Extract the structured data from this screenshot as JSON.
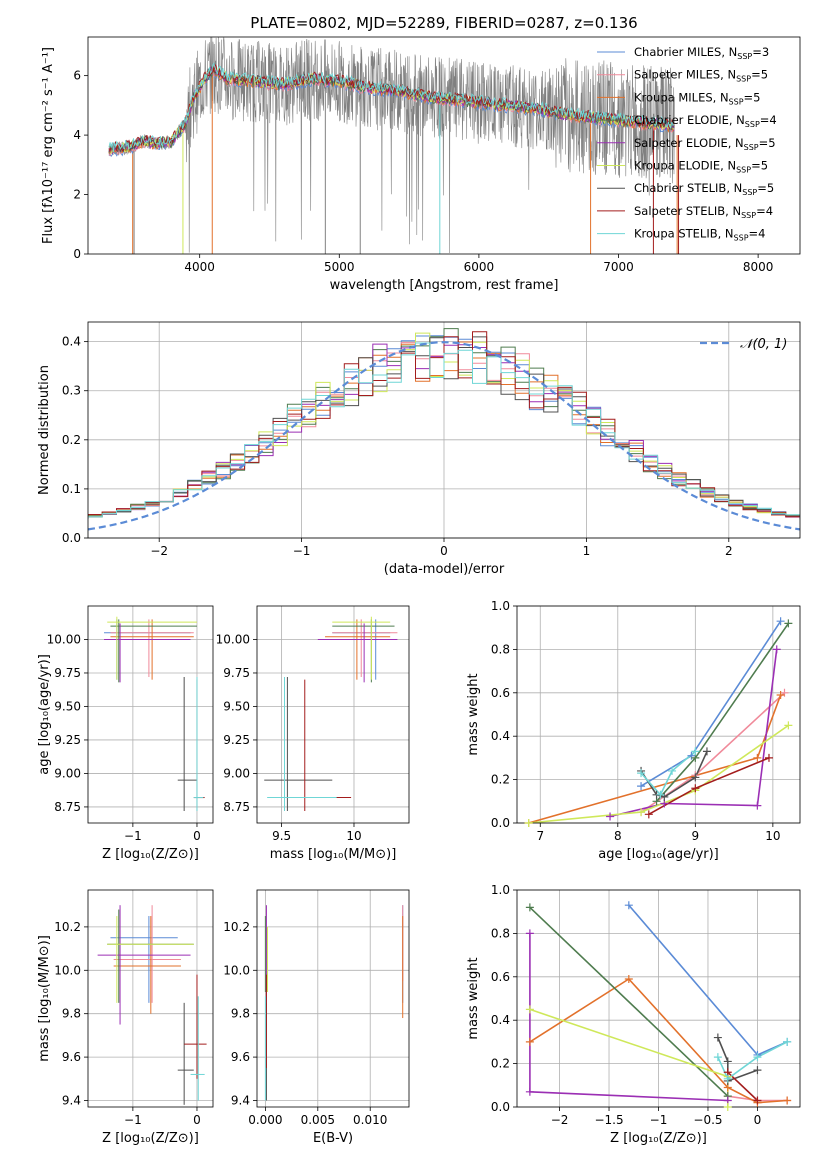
{
  "colors": {
    "chabrier_miles": "#5b8bd6",
    "salpeter_miles": "#f08a9a",
    "kroupa_miles": "#e2712b",
    "chabrier_elodie": "#4f7c4f",
    "salpeter_elodie": "#9b2fb4",
    "kroupa_elodie": "#cfe85a",
    "chabrier_stelib": "#505050",
    "salpeter_stelib": "#a31d1d",
    "kroupa_stelib": "#6fd6d6",
    "data": "#808080"
  },
  "chart_data": [
    {
      "id": "spectrum",
      "type": "line",
      "title": "PLATE=0802, MJD=52289, FIBERID=0287, z=0.136",
      "xlabel": "wavelength [Angstrom, rest frame]",
      "ylabel": "Flux [fλ10⁻¹⁷ erg cm⁻² s⁻¹ A⁻¹]",
      "xlim": [
        3200,
        8300
      ],
      "ylim": [
        0,
        7.3
      ],
      "xticks": [
        4000,
        5000,
        6000,
        7000,
        8000
      ],
      "yticks": [
        0,
        2,
        4,
        6
      ],
      "grid": false,
      "legend_placement": "right",
      "legend": [
        {
          "label": "Chabrier MILES, N",
          "sub": "SSP",
          "tail": "=3",
          "color": "chabrier_miles"
        },
        {
          "label": "Salpeter MILES, N",
          "sub": "SSP",
          "tail": "=5",
          "color": "salpeter_miles"
        },
        {
          "label": "Kroupa MILES, N",
          "sub": "SSP",
          "tail": "=5",
          "color": "kroupa_miles"
        },
        {
          "label": "Chabrier ELODIE, N",
          "sub": "SSP",
          "tail": "=4",
          "color": "chabrier_elodie"
        },
        {
          "label": "Salpeter ELODIE, N",
          "sub": "SSP",
          "tail": "=5",
          "color": "salpeter_elodie"
        },
        {
          "label": "Kroupa ELODIE, N",
          "sub": "SSP",
          "tail": "=5",
          "color": "kroupa_elodie"
        },
        {
          "label": "Chabrier STELIB, N",
          "sub": "SSP",
          "tail": "=5",
          "color": "chabrier_stelib"
        },
        {
          "label": "Salpeter STELIB, N",
          "sub": "SSP",
          "tail": "=4",
          "color": "salpeter_stelib"
        },
        {
          "label": "Kroupa STELIB, N",
          "sub": "SSP",
          "tail": "=4",
          "color": "kroupa_stelib"
        }
      ],
      "model_envelope": {
        "x": [
          3350,
          3500,
          3600,
          3700,
          3800,
          3900,
          3950,
          4000,
          4050,
          4100,
          4200,
          4400,
          4600,
          4800,
          5000,
          5200,
          5400,
          5600,
          5800,
          6000,
          6200,
          6400,
          6600,
          6800,
          7000,
          7200,
          7400
        ],
        "y": [
          3.5,
          3.6,
          3.8,
          3.7,
          3.8,
          4.4,
          5.2,
          5.6,
          6.0,
          6.2,
          5.9,
          5.8,
          5.7,
          5.9,
          5.8,
          5.6,
          5.5,
          5.3,
          5.2,
          5.1,
          5.0,
          4.9,
          4.7,
          4.6,
          4.5,
          4.4,
          4.3
        ]
      },
      "data_noise_amplitude": 1.4,
      "dropouts": [
        {
          "x": 3520,
          "color": "kroupa_miles"
        },
        {
          "x": 3530,
          "color": "data"
        },
        {
          "x": 3880,
          "color": "kroupa_elodie"
        },
        {
          "x": 4090,
          "color": "kroupa_miles"
        },
        {
          "x": 4900,
          "color": "data"
        },
        {
          "x": 5150,
          "color": "data"
        },
        {
          "x": 5720,
          "color": "kroupa_stelib"
        },
        {
          "x": 6800,
          "color": "kroupa_miles"
        },
        {
          "x": 7250,
          "color": "salpeter_stelib"
        },
        {
          "x": 7420,
          "color": "kroupa_miles"
        },
        {
          "x": 7430,
          "color": "salpeter_stelib"
        }
      ]
    },
    {
      "id": "residuals",
      "type": "line",
      "xlabel": "(data-model)/error",
      "ylabel": "Normed distribution",
      "xlim": [
        -2.5,
        2.5
      ],
      "ylim": [
        0,
        0.44
      ],
      "xticks": [
        -2,
        -1,
        0,
        1,
        2
      ],
      "yticks": [
        0.0,
        0.1,
        0.2,
        0.3,
        0.4
      ],
      "grid": true,
      "legend_placement": "top-right",
      "reference_label": "𝒩(0, 1)",
      "reference_color": "chabrier_miles",
      "bin_width": 0.1
    },
    {
      "id": "age_vs_Z",
      "type": "errorbar",
      "xlabel": "Z [log₁₀(Z/Z⊙)]",
      "ylabel": "age  [log₁₀(age/yr)]",
      "xlim": [
        -1.7,
        0.25
      ],
      "ylim": [
        8.63,
        10.25
      ],
      "xticks": [
        -1,
        0
      ],
      "yticks": [
        8.75,
        9.0,
        9.25,
        9.5,
        9.75,
        10.0
      ],
      "grid": true
    },
    {
      "id": "age_vs_mass",
      "type": "errorbar",
      "xlabel": "mass [log₁₀(M/M⊙)]",
      "ylabel": "",
      "xlim": [
        9.33,
        10.38
      ],
      "ylim": [
        8.63,
        10.25
      ],
      "xticks": [
        9.5,
        10.0
      ],
      "yticks": [
        8.75,
        9.0,
        9.25,
        9.5,
        9.75,
        10.0
      ],
      "grid": true
    },
    {
      "id": "weight_vs_age",
      "type": "line",
      "xlabel": "age  [log₁₀(age/yr)]",
      "ylabel": "mass weight",
      "xlim": [
        6.7,
        10.35
      ],
      "ylim": [
        0,
        1.0
      ],
      "xticks": [
        7,
        8,
        9,
        10
      ],
      "yticks": [
        0.0,
        0.2,
        0.4,
        0.6,
        0.8,
        1.0
      ],
      "grid": true,
      "series": [
        {
          "color": "chabrier_miles",
          "x": [
            8.3,
            8.95,
            10.1
          ],
          "y": [
            0.17,
            0.31,
            0.93
          ]
        },
        {
          "color": "salpeter_miles",
          "x": [
            8.3,
            9.0,
            10.15
          ],
          "y": [
            0.05,
            0.22,
            0.6
          ]
        },
        {
          "color": "kroupa_miles",
          "x": [
            6.85,
            9.8,
            10.1
          ],
          "y": [
            0.0,
            0.3,
            0.59
          ]
        },
        {
          "color": "chabrier_elodie",
          "x": [
            8.5,
            9.0,
            10.2
          ],
          "y": [
            0.1,
            0.3,
            0.92
          ]
        },
        {
          "color": "salpeter_elodie",
          "x": [
            7.9,
            8.6,
            9.8,
            10.05
          ],
          "y": [
            0.03,
            0.09,
            0.08,
            0.8
          ]
        },
        {
          "color": "kroupa_elodie",
          "x": [
            6.85,
            8.3,
            9.0,
            10.2
          ],
          "y": [
            0.0,
            0.05,
            0.15,
            0.45
          ]
        },
        {
          "color": "chabrier_stelib",
          "x": [
            8.3,
            8.5,
            8.6,
            9.0,
            9.15
          ],
          "y": [
            0.24,
            0.13,
            0.12,
            0.21,
            0.33
          ]
        },
        {
          "color": "salpeter_stelib",
          "x": [
            8.4,
            9.0,
            9.95
          ],
          "y": [
            0.04,
            0.16,
            0.3
          ]
        },
        {
          "color": "kroupa_stelib",
          "x": [
            8.3,
            8.55,
            8.7,
            9.0
          ],
          "y": [
            0.23,
            0.13,
            0.24,
            0.33
          ]
        }
      ]
    },
    {
      "id": "mass_vs_Z",
      "type": "errorbar",
      "xlabel": "Z [log₁₀(Z/Z⊙)]",
      "ylabel": "mass [log₁₀(M/M⊙)]",
      "xlim": [
        -1.7,
        0.25
      ],
      "ylim": [
        9.37,
        10.37
      ],
      "xticks": [
        -1,
        0
      ],
      "yticks": [
        9.4,
        9.6,
        9.8,
        10.0,
        10.2
      ],
      "grid": true
    },
    {
      "id": "mass_vs_ebv",
      "type": "errorbar",
      "xlabel": "E(B-V)",
      "ylabel": "",
      "xlim": [
        -0.0008,
        0.0137
      ],
      "ylim": [
        9.37,
        10.37
      ],
      "xticks": [
        0.0,
        0.005,
        0.01
      ],
      "xticklabels": [
        "0.000",
        "0.005",
        "0.010"
      ],
      "yticks": [
        9.4,
        9.6,
        9.8,
        10.0,
        10.2
      ],
      "grid": true
    },
    {
      "id": "weight_vs_Z",
      "type": "line",
      "xlabel": "Z [log₁₀(Z/Z⊙)]",
      "ylabel": "mass weight",
      "xlim": [
        -2.43,
        0.43
      ],
      "ylim": [
        0,
        1.0
      ],
      "xticks": [
        -2.0,
        -1.5,
        -1.0,
        -0.5,
        0.0
      ],
      "yticks": [
        0.0,
        0.2,
        0.4,
        0.6,
        0.8,
        1.0
      ],
      "grid": true,
      "series": [
        {
          "color": "chabrier_miles",
          "x": [
            -1.3,
            0.0,
            0.3
          ],
          "y": [
            0.93,
            0.24,
            0.3
          ]
        },
        {
          "color": "salpeter_miles",
          "x": [
            -0.3,
            0.0,
            0.3
          ],
          "y": [
            0.05,
            0.03,
            0.03
          ]
        },
        {
          "color": "kroupa_miles",
          "x": [
            -2.3,
            -1.3,
            -0.3,
            0.0,
            0.3
          ],
          "y": [
            0.3,
            0.59,
            0.09,
            0.02,
            0.03
          ]
        },
        {
          "color": "chabrier_elodie",
          "x": [
            -2.3,
            -0.3
          ],
          "y": [
            0.92,
            0.05
          ]
        },
        {
          "color": "salpeter_elodie",
          "x": [
            -2.3,
            -2.3,
            -0.3
          ],
          "y": [
            0.8,
            0.07,
            0.03
          ]
        },
        {
          "color": "kroupa_elodie",
          "x": [
            -2.3,
            -0.3,
            -0.3
          ],
          "y": [
            0.45,
            0.14,
            0.0
          ]
        },
        {
          "color": "chabrier_stelib",
          "x": [
            -0.4,
            -0.3,
            -0.3,
            0.0
          ],
          "y": [
            0.32,
            0.21,
            0.12,
            0.17
          ]
        },
        {
          "color": "salpeter_stelib",
          "x": [
            -0.3,
            0.0
          ],
          "y": [
            0.16,
            0.03
          ]
        },
        {
          "color": "kroupa_stelib",
          "x": [
            -0.4,
            -0.3,
            0.0,
            0.3
          ],
          "y": [
            0.23,
            0.13,
            0.23,
            0.3
          ]
        }
      ]
    }
  ],
  "fits": [
    {
      "color": "chabrier_miles",
      "age": 10.05,
      "age_lo": 9.7,
      "age_hi": 10.15,
      "Z": -1.25,
      "Z_lo": -1.45,
      "Z_hi": -0.1,
      "mass": 10.15,
      "mass_lo": 9.85,
      "mass_hi": 10.25,
      "mZ": -0.75,
      "mZ_lo": -1.35,
      "mZ_hi": -0.3,
      "ebv": 0.0131,
      "ebv_m_lo": 9.85,
      "ebv_m_hi": 10.3
    },
    {
      "color": "salpeter_miles",
      "age": 10.05,
      "age_lo": 9.72,
      "age_hi": 10.15,
      "Z": -0.75,
      "Z_lo": -1.35,
      "Z_hi": -0.05,
      "mass": 10.05,
      "mass_lo": 9.85,
      "mass_hi": 10.3,
      "mZ": -0.7,
      "mZ_lo": -1.3,
      "mZ_hi": -0.25,
      "ebv": 0.0131,
      "ebv_m_lo": 9.95,
      "ebv_m_hi": 10.3
    },
    {
      "color": "kroupa_miles",
      "age": 10.02,
      "age_lo": 9.7,
      "age_hi": 10.15,
      "Z": -0.7,
      "Z_lo": -1.35,
      "Z_hi": -0.05,
      "mass": 10.02,
      "mass_lo": 9.8,
      "mass_hi": 10.25,
      "mZ": -0.72,
      "mZ_lo": -1.3,
      "mZ_hi": -0.25,
      "ebv": 0.0131,
      "ebv_m_lo": 9.78,
      "ebv_m_hi": 10.25
    },
    {
      "color": "chabrier_elodie",
      "age": 10.1,
      "age_lo": 9.68,
      "age_hi": 10.15,
      "Z": -1.22,
      "Z_lo": -1.35,
      "Z_hi": 0.0,
      "mass": 10.12,
      "mass_lo": 9.85,
      "mass_hi": 10.28,
      "mZ": -1.22,
      "mZ_lo": -1.4,
      "mZ_hi": -0.05,
      "ebv": 0.0,
      "ebv_m_lo": 9.9,
      "ebv_m_hi": 10.25
    },
    {
      "color": "salpeter_elodie",
      "age": 10.0,
      "age_lo": 9.68,
      "age_hi": 10.12,
      "Z": -1.2,
      "Z_lo": -1.45,
      "Z_hi": -0.1,
      "mass": 10.07,
      "mass_lo": 9.75,
      "mass_hi": 10.3,
      "mZ": -1.2,
      "mZ_lo": -1.55,
      "mZ_hi": -0.1,
      "ebv": 0.0001,
      "ebv_m_lo": 9.85,
      "ebv_m_hi": 10.3
    },
    {
      "color": "kroupa_elodie",
      "age": 10.13,
      "age_lo": 9.7,
      "age_hi": 10.17,
      "Z": -1.25,
      "Z_lo": -1.4,
      "Z_hi": 0.0,
      "mass": 10.12,
      "mass_lo": 9.85,
      "mass_hi": 10.25,
      "mZ": -1.25,
      "mZ_lo": -1.4,
      "mZ_hi": -0.05,
      "ebv": 0.0002,
      "ebv_m_lo": 9.9,
      "ebv_m_hi": 10.2
    },
    {
      "color": "chabrier_stelib",
      "age": 8.95,
      "age_lo": 8.72,
      "age_hi": 9.72,
      "Z": -0.2,
      "Z_lo": -0.3,
      "Z_hi": 0.0,
      "mass": 9.54,
      "mass_lo": 9.38,
      "mass_hi": 9.85,
      "mZ": -0.2,
      "mZ_lo": -0.3,
      "mZ_hi": -0.05,
      "ebv": 0.0001,
      "ebv_m_lo": 9.4,
      "ebv_m_hi": 9.85
    },
    {
      "color": "salpeter_stelib",
      "age": 8.82,
      "age_lo": 8.72,
      "age_hi": 9.7,
      "Z": 0.0,
      "Z_lo": -0.05,
      "Z_hi": 0.12,
      "mass": 9.66,
      "mass_lo": 9.5,
      "mass_hi": 9.98,
      "mZ": 0.0,
      "mZ_lo": -0.2,
      "mZ_hi": 0.15,
      "ebv": 0.0001,
      "ebv_m_lo": 9.55,
      "ebv_m_hi": 9.98
    },
    {
      "color": "kroupa_stelib",
      "age": 8.82,
      "age_lo": 8.72,
      "age_hi": 9.72,
      "Z": 0.0,
      "Z_lo": -0.05,
      "Z_hi": 0.1,
      "mass": 9.52,
      "mass_lo": 9.4,
      "mass_hi": 9.88,
      "mZ": 0.02,
      "mZ_lo": -0.1,
      "mZ_hi": 0.12,
      "ebv": 0.0,
      "ebv_m_lo": 9.4,
      "ebv_m_hi": 9.88
    }
  ]
}
